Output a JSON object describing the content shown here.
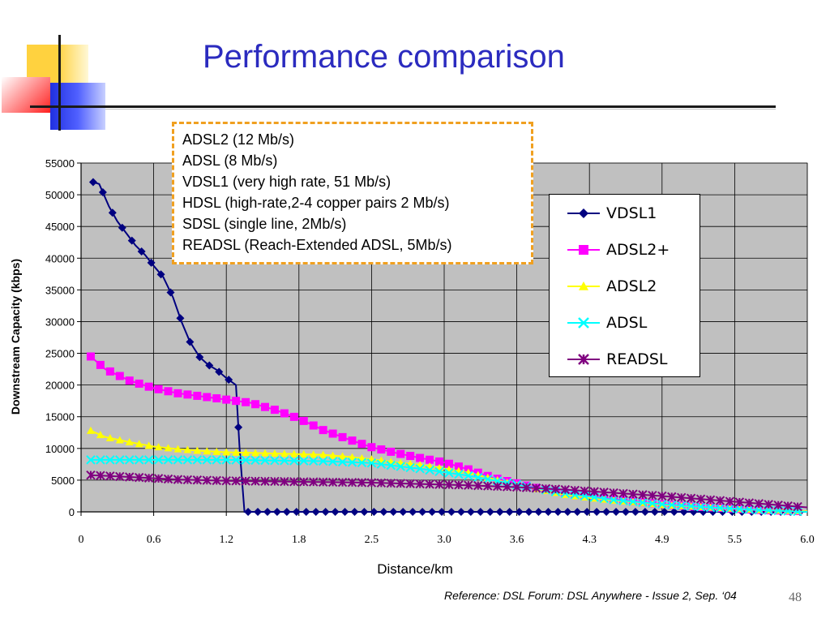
{
  "title": "Performance comparison",
  "note_box": {
    "lines": [
      "ADSL2 (12 Mb/s)",
      "ADSL (8 Mb/s)",
      "VDSL1 (very high rate, 51 Mb/s)",
      "HDSL (high-rate,2-4 copper pairs 2 Mb/s)",
      "SDSL (single line, 2Mb/s)",
      "READSL (Reach-Extended ADSL, 5Mb/s)"
    ]
  },
  "reference": "Reference: DSL Forum: DSL Anywhere - Issue 2, Sep. ‘04",
  "page_number": "48",
  "colors": {
    "plot_bg": "#c0c0c0",
    "title": "#2b2bbf",
    "note_border": "#f0a020"
  },
  "chart_data": {
    "type": "line",
    "xlabel": "Distance/km",
    "ylabel": "Downstream Capacity (kbps)",
    "x_tick_labels": [
      "0",
      "0.6",
      "1.2",
      "1.8",
      "2.5",
      "3.0",
      "3.6",
      "4.3",
      "4.9",
      "5.5",
      "6.0"
    ],
    "y_ticks": [
      0,
      5000,
      10000,
      15000,
      20000,
      25000,
      30000,
      35000,
      40000,
      45000,
      50000,
      55000
    ],
    "xlim": [
      0,
      6.0
    ],
    "ylim": [
      0,
      55000
    ],
    "grid": true,
    "legend_position": "right",
    "series": [
      {
        "name": "VDSL1",
        "color": "#000080",
        "marker": "diamond",
        "points": [
          [
            0.1,
            52000
          ],
          [
            0.15,
            51700
          ],
          [
            0.23,
            48200
          ],
          [
            0.3,
            45800
          ],
          [
            0.38,
            43800
          ],
          [
            0.45,
            42000
          ],
          [
            0.53,
            40500
          ],
          [
            0.6,
            38800
          ],
          [
            0.68,
            37000
          ],
          [
            0.76,
            33800
          ],
          [
            0.83,
            30000
          ],
          [
            0.9,
            26800
          ],
          [
            0.98,
            24400
          ],
          [
            1.05,
            23200
          ],
          [
            1.12,
            22400
          ],
          [
            1.2,
            21100
          ],
          [
            1.28,
            20000
          ],
          [
            1.31,
            10000
          ],
          [
            1.35,
            0
          ],
          [
            6.0,
            0
          ]
        ],
        "marker_step": 0.1
      },
      {
        "name": "ADSL2+",
        "color": "#ff00ff",
        "marker": "square",
        "points": [
          [
            0.08,
            24500
          ],
          [
            0.2,
            22500
          ],
          [
            0.4,
            20700
          ],
          [
            0.6,
            19500
          ],
          [
            0.8,
            18700
          ],
          [
            1.0,
            18200
          ],
          [
            1.2,
            17700
          ],
          [
            1.4,
            17200
          ],
          [
            1.6,
            16100
          ],
          [
            1.8,
            14700
          ],
          [
            2.0,
            12900
          ],
          [
            2.2,
            11500
          ],
          [
            2.4,
            10200
          ],
          [
            2.6,
            9300
          ],
          [
            2.8,
            8500
          ],
          [
            3.0,
            7800
          ],
          [
            3.2,
            6700
          ],
          [
            3.4,
            5400
          ],
          [
            3.6,
            4500
          ],
          [
            3.8,
            3600
          ],
          [
            4.0,
            3000
          ],
          [
            4.2,
            2500
          ],
          [
            4.4,
            2000
          ],
          [
            4.6,
            1600
          ],
          [
            4.8,
            1200
          ],
          [
            5.0,
            900
          ],
          [
            5.2,
            700
          ],
          [
            5.4,
            500
          ],
          [
            5.6,
            300
          ],
          [
            5.8,
            200
          ],
          [
            6.0,
            100
          ]
        ]
      },
      {
        "name": "ADSL2",
        "color": "#ffff00",
        "marker": "triangle",
        "points": [
          [
            0.08,
            12800
          ],
          [
            0.2,
            11800
          ],
          [
            0.4,
            11000
          ],
          [
            0.6,
            10300
          ],
          [
            0.8,
            9900
          ],
          [
            1.0,
            9600
          ],
          [
            1.2,
            9400
          ],
          [
            1.4,
            9300
          ],
          [
            1.6,
            9200
          ],
          [
            1.8,
            9100
          ],
          [
            2.0,
            9000
          ],
          [
            2.2,
            8700
          ],
          [
            2.4,
            8300
          ],
          [
            2.6,
            7800
          ],
          [
            2.8,
            7400
          ],
          [
            3.0,
            6800
          ],
          [
            3.2,
            6200
          ],
          [
            3.4,
            5200
          ],
          [
            3.6,
            4200
          ],
          [
            3.8,
            3500
          ],
          [
            4.0,
            2700
          ],
          [
            4.2,
            2200
          ],
          [
            4.4,
            1800
          ],
          [
            4.6,
            1500
          ],
          [
            4.8,
            1100
          ],
          [
            5.0,
            900
          ],
          [
            5.2,
            700
          ],
          [
            5.4,
            500
          ],
          [
            5.6,
            300
          ],
          [
            5.8,
            200
          ],
          [
            6.0,
            100
          ]
        ]
      },
      {
        "name": "ADSL",
        "color": "#00ffff",
        "marker": "x",
        "points": [
          [
            0.08,
            8200
          ],
          [
            0.4,
            8200
          ],
          [
            0.8,
            8200
          ],
          [
            1.2,
            8200
          ],
          [
            1.6,
            8100
          ],
          [
            2.0,
            8000
          ],
          [
            2.4,
            7700
          ],
          [
            2.8,
            6800
          ],
          [
            3.2,
            5700
          ],
          [
            3.6,
            4300
          ],
          [
            4.0,
            2900
          ],
          [
            4.4,
            1900
          ],
          [
            4.8,
            1200
          ],
          [
            5.2,
            700
          ],
          [
            5.6,
            300
          ],
          [
            6.0,
            0
          ]
        ]
      },
      {
        "name": "READSL",
        "color": "#800080",
        "marker": "star",
        "points": [
          [
            0.08,
            5800
          ],
          [
            0.4,
            5500
          ],
          [
            0.8,
            5100
          ],
          [
            1.2,
            4900
          ],
          [
            1.6,
            4800
          ],
          [
            2.0,
            4700
          ],
          [
            2.4,
            4600
          ],
          [
            2.8,
            4400
          ],
          [
            3.2,
            4200
          ],
          [
            3.6,
            3900
          ],
          [
            4.0,
            3500
          ],
          [
            4.4,
            3000
          ],
          [
            4.8,
            2500
          ],
          [
            5.2,
            1900
          ],
          [
            5.6,
            1300
          ],
          [
            6.0,
            700
          ]
        ]
      }
    ]
  }
}
